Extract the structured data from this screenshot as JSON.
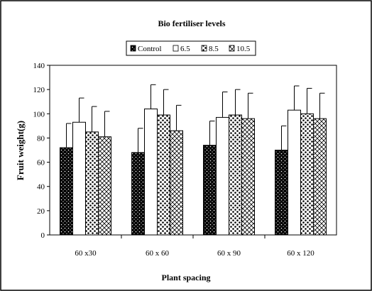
{
  "chart_data": {
    "type": "bar",
    "title": "Bio fertiliser levels",
    "xlabel": "Plant spacing",
    "ylabel": "Fruit weight(g)",
    "categories": [
      "60 x30",
      "60 x 60",
      "60 x 90",
      "60 x 120"
    ],
    "ylim": [
      0,
      140
    ],
    "yticks": [
      0,
      20,
      40,
      60,
      80,
      100,
      120,
      140
    ],
    "legend_position": "top",
    "grid": false,
    "error_bars": "upper",
    "series": [
      {
        "name": "Control",
        "pattern": "dots-on-black",
        "values": [
          72,
          68,
          74,
          70
        ],
        "errors": [
          20,
          20,
          20,
          20
        ]
      },
      {
        "name": "6.5",
        "pattern": "white",
        "values": [
          93,
          104,
          97,
          103
        ],
        "errors": [
          20,
          20,
          21,
          20
        ]
      },
      {
        "name": "8.5",
        "pattern": "large-dots",
        "values": [
          85,
          99,
          99,
          100
        ],
        "errors": [
          21,
          21,
          21,
          21
        ]
      },
      {
        "name": "10.5",
        "pattern": "crosshatch",
        "values": [
          81,
          86,
          96,
          96
        ],
        "errors": [
          21,
          21,
          21,
          21
        ]
      }
    ]
  }
}
